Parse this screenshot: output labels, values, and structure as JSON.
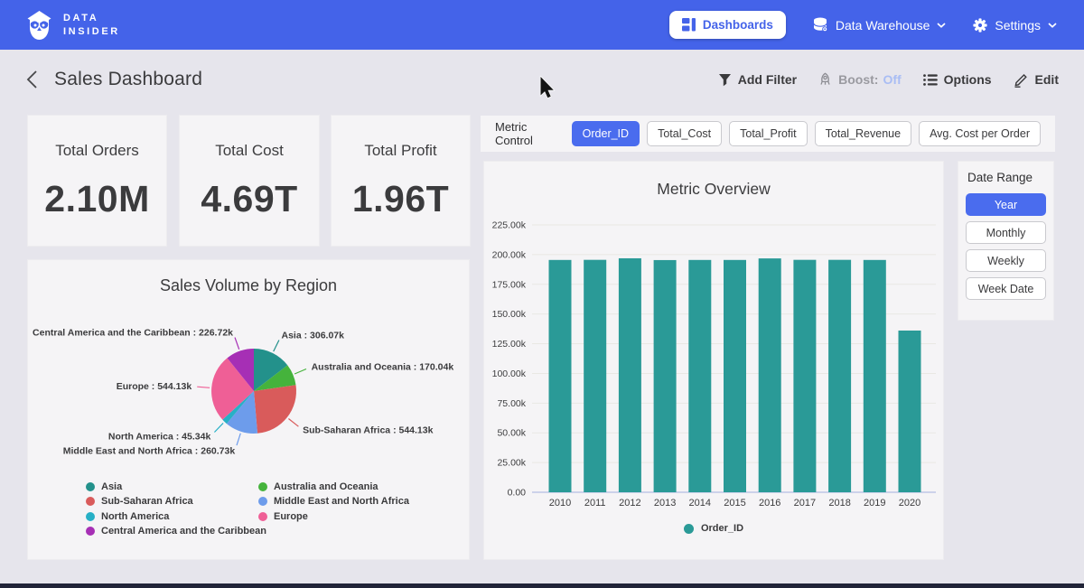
{
  "colors": {
    "accent": "#4a6cee",
    "navbar_bg": "#4463e9",
    "page_bg": "#e6e5ec",
    "card_bg": "#f5f4f6",
    "bar": "#2a9a97",
    "boost_off": "#a9bdf4",
    "footer_bar": "#212438"
  },
  "navbar": {
    "brand_line1": "DATA",
    "brand_line2": "INSIDER",
    "dashboards_label": "Dashboards",
    "data_warehouse_label": "Data Warehouse",
    "settings_label": "Settings"
  },
  "header": {
    "title": "Sales Dashboard",
    "actions": {
      "add_filter": "Add Filter",
      "boost_label": "Boost:",
      "boost_value": "Off",
      "options": "Options",
      "edit": "Edit"
    }
  },
  "kpis": [
    {
      "label": "Total Orders",
      "value": "2.10M"
    },
    {
      "label": "Total Cost",
      "value": "4.69T"
    },
    {
      "label": "Total Profit",
      "value": "1.96T"
    }
  ],
  "metric_control": {
    "label": "Metric Control",
    "chips": [
      {
        "label": "Order_ID",
        "selected": true
      },
      {
        "label": "Total_Cost",
        "selected": false
      },
      {
        "label": "Total_Profit",
        "selected": false
      },
      {
        "label": "Total_Revenue",
        "selected": false
      },
      {
        "label": "Avg. Cost per Order",
        "selected": false
      }
    ]
  },
  "date_range": {
    "label": "Date Range",
    "options": [
      {
        "label": "Year",
        "selected": true
      },
      {
        "label": "Monthly",
        "selected": false
      },
      {
        "label": "Weekly",
        "selected": false
      },
      {
        "label": "Week Date",
        "selected": false
      }
    ]
  },
  "chart_data": [
    {
      "type": "bar",
      "title": "Metric Overview",
      "xlabel": "",
      "ylabel": "",
      "categories": [
        "2010",
        "2011",
        "2012",
        "2013",
        "2014",
        "2015",
        "2016",
        "2017",
        "2018",
        "2019",
        "2020"
      ],
      "series": [
        {
          "name": "Order_ID",
          "color": "#2a9a97",
          "values": [
            195500,
            195600,
            196900,
            195400,
            195500,
            195500,
            196800,
            195600,
            195600,
            195500,
            136100
          ]
        }
      ],
      "ylim": [
        0,
        225000
      ],
      "ytick_step": 25000,
      "ytick_labels": [
        "0.00",
        "25.00k",
        "50.00k",
        "75.00k",
        "100.00k",
        "125.00k",
        "150.00k",
        "175.00k",
        "200.00k",
        "225.00k"
      ],
      "grid": true,
      "legend_position": "bottom"
    },
    {
      "type": "pie",
      "title": "Sales Volume by Region",
      "slices": [
        {
          "label": "Asia",
          "value": 306070,
          "display": "Asia : 306.07k",
          "color": "#23918b"
        },
        {
          "label": "Australia and Oceania",
          "value": 170040,
          "display": "Australia and Oceania : 170.04k",
          "color": "#45b33c"
        },
        {
          "label": "Sub-Saharan Africa",
          "value": 544130,
          "display": "Sub-Saharan Africa : 544.13k",
          "color": "#d95b5b"
        },
        {
          "label": "Middle East and North Africa",
          "value": 260730,
          "display": "Middle East and North Africa : 260.73k",
          "color": "#6d9ceb"
        },
        {
          "label": "North America",
          "value": 45340,
          "display": "North America : 45.34k",
          "color": "#27b0c6"
        },
        {
          "label": "Europe",
          "value": 544130,
          "display": "Europe : 544.13k",
          "color": "#ef5f96"
        },
        {
          "label": "Central America and the Caribbean",
          "value": 226720,
          "display": "Central America and the Caribbean : 226.72k",
          "color": "#a62fb5"
        }
      ],
      "legend_position": "bottom",
      "legend_columns": [
        [
          "Asia",
          "Sub-Saharan Africa",
          "North America",
          "Central America and the Caribbean"
        ],
        [
          "Australia and Oceania",
          "Middle East and North Africa",
          "Europe"
        ]
      ]
    }
  ]
}
